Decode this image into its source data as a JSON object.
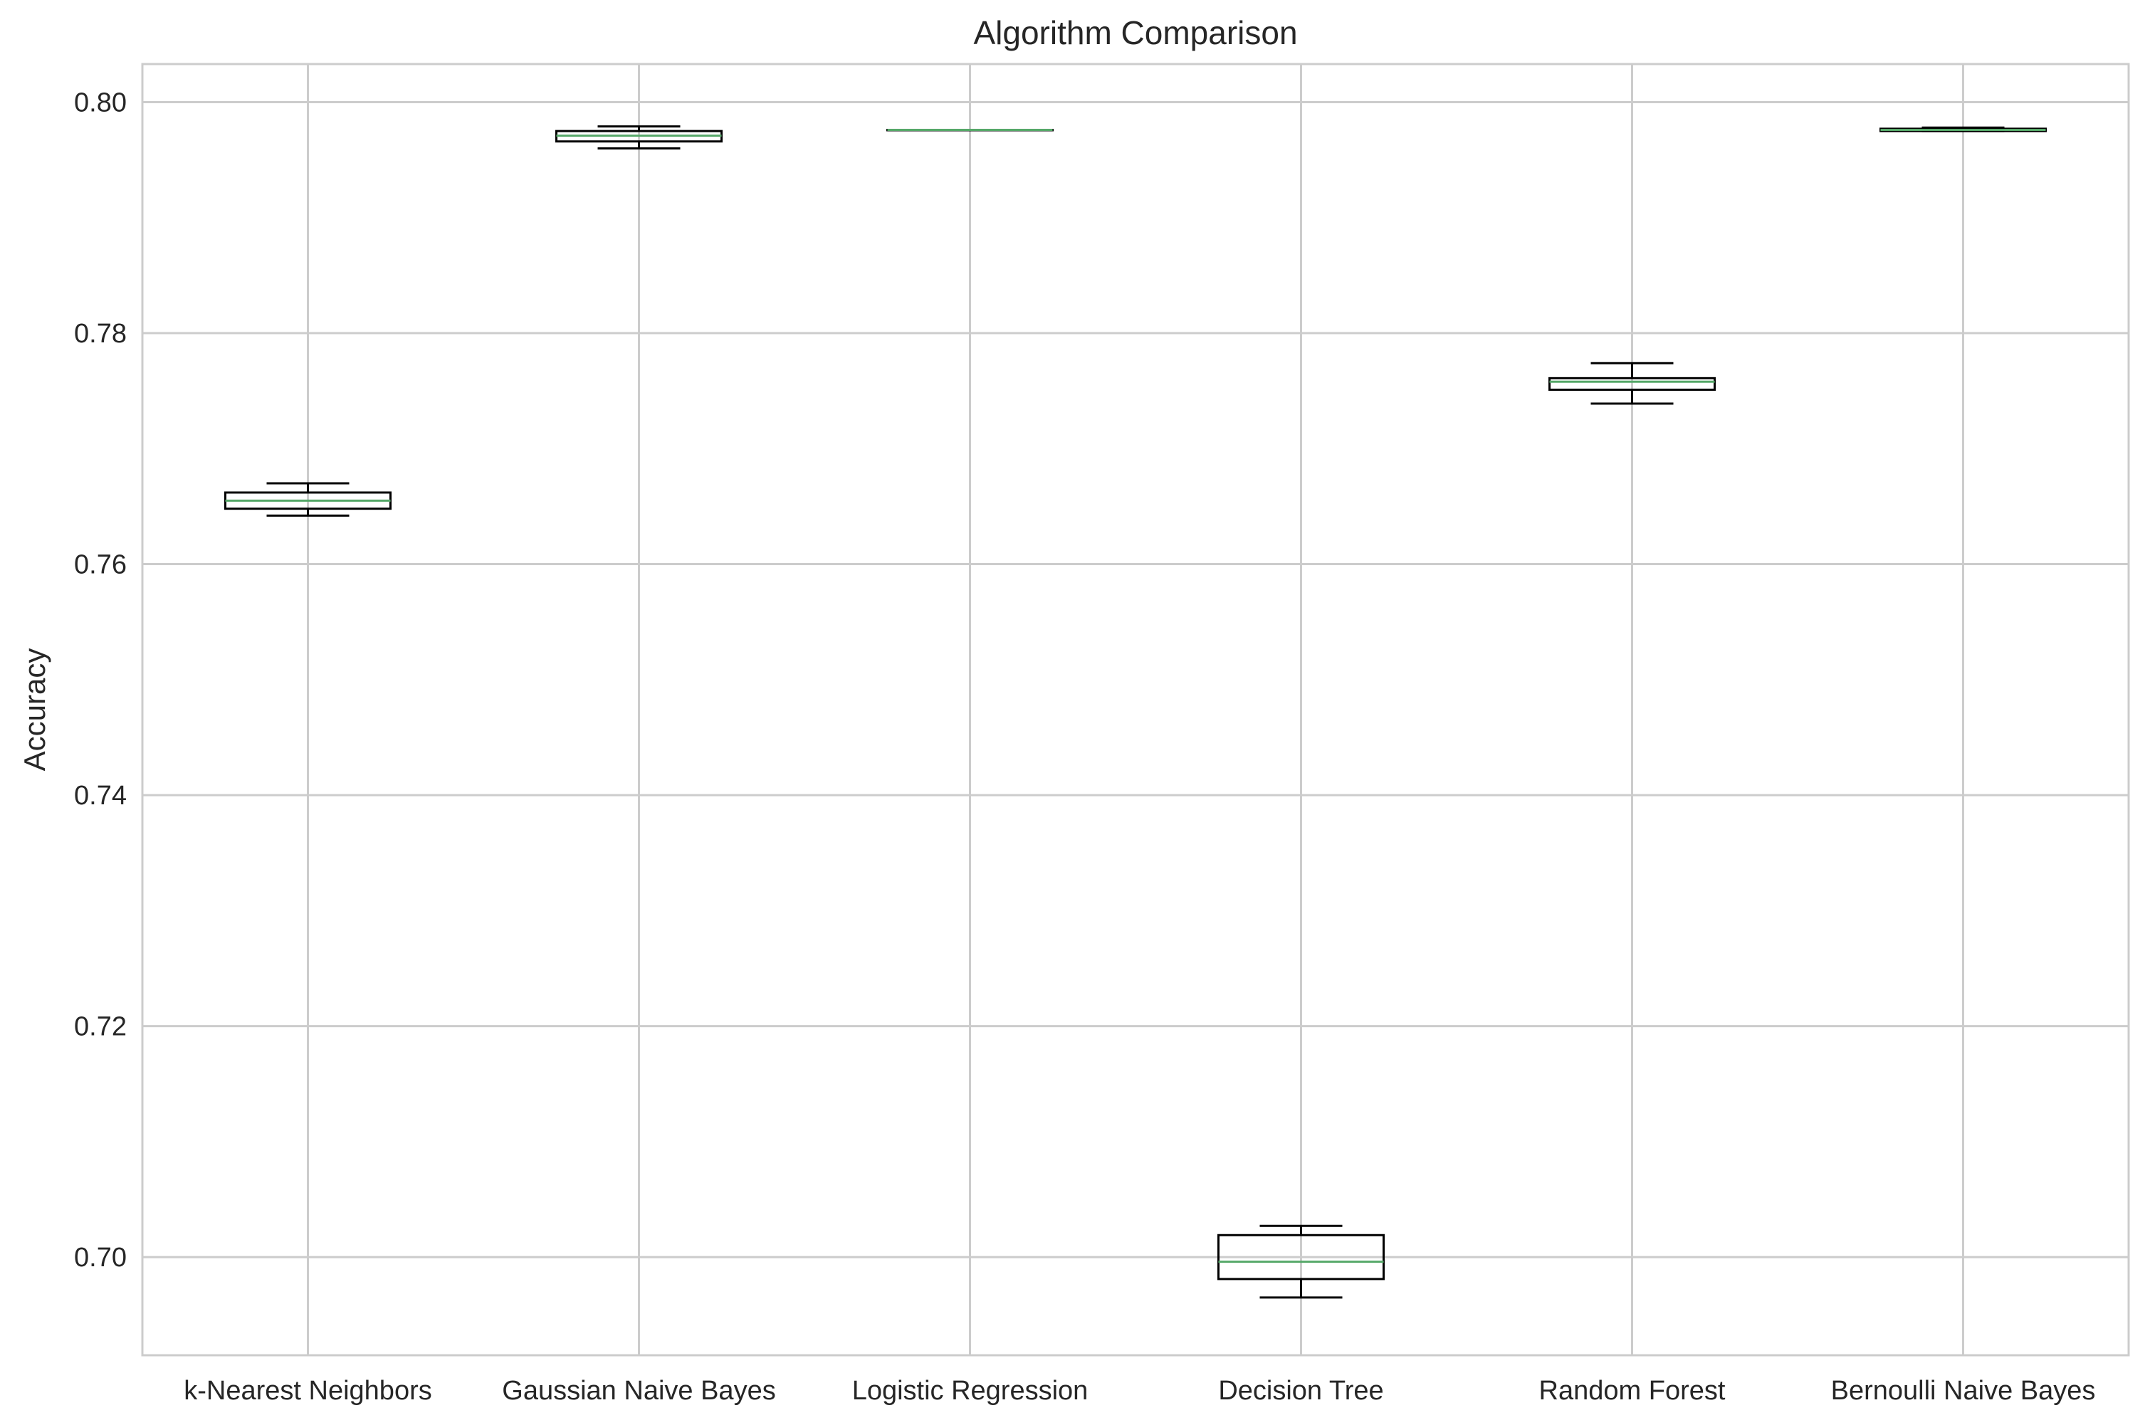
{
  "chart_data": {
    "type": "box",
    "title": "Algorithm Comparison",
    "xlabel": "",
    "ylabel": "Accuracy",
    "ylim": [
      0.6915,
      0.8033
    ],
    "yticks": [
      0.7,
      0.72,
      0.74,
      0.76,
      0.78,
      0.8
    ],
    "ytick_labels": [
      "0.70",
      "0.72",
      "0.74",
      "0.76",
      "0.78",
      "0.80"
    ],
    "grid": true,
    "legend": "none",
    "categories": [
      "k-Nearest Neighbors",
      "Gaussian Naive Bayes",
      "Logistic Regression",
      "Decision Tree",
      "Random Forest",
      "Bernoulli Naive Bayes"
    ],
    "boxes": [
      {
        "category": "k-Nearest Neighbors",
        "whisker_low": 0.7642,
        "q1": 0.7648,
        "median": 0.7655,
        "q3": 0.7662,
        "whisker_high": 0.767
      },
      {
        "category": "Gaussian Naive Bayes",
        "whisker_low": 0.796,
        "q1": 0.7966,
        "median": 0.7971,
        "q3": 0.7975,
        "whisker_high": 0.7979
      },
      {
        "category": "Logistic Regression",
        "whisker_low": 0.7976,
        "q1": 0.7976,
        "median": 0.7976,
        "q3": 0.7976,
        "whisker_high": 0.7976
      },
      {
        "category": "Decision Tree",
        "whisker_low": 0.6965,
        "q1": 0.6981,
        "median": 0.6996,
        "q3": 0.7019,
        "whisker_high": 0.7027
      },
      {
        "category": "Random Forest",
        "whisker_low": 0.7739,
        "q1": 0.7751,
        "median": 0.7758,
        "q3": 0.7761,
        "whisker_high": 0.7774
      },
      {
        "category": "Bernoulli Naive Bayes",
        "whisker_low": 0.7975,
        "q1": 0.7975,
        "median": 0.7976,
        "q3": 0.7977,
        "whisker_high": 0.7978
      }
    ],
    "colors": {
      "box": "#000000",
      "median": "#55a868",
      "grid": "#cccccc",
      "frame": "#cccccc",
      "background": "#ffffff",
      "text": "#262626"
    }
  }
}
